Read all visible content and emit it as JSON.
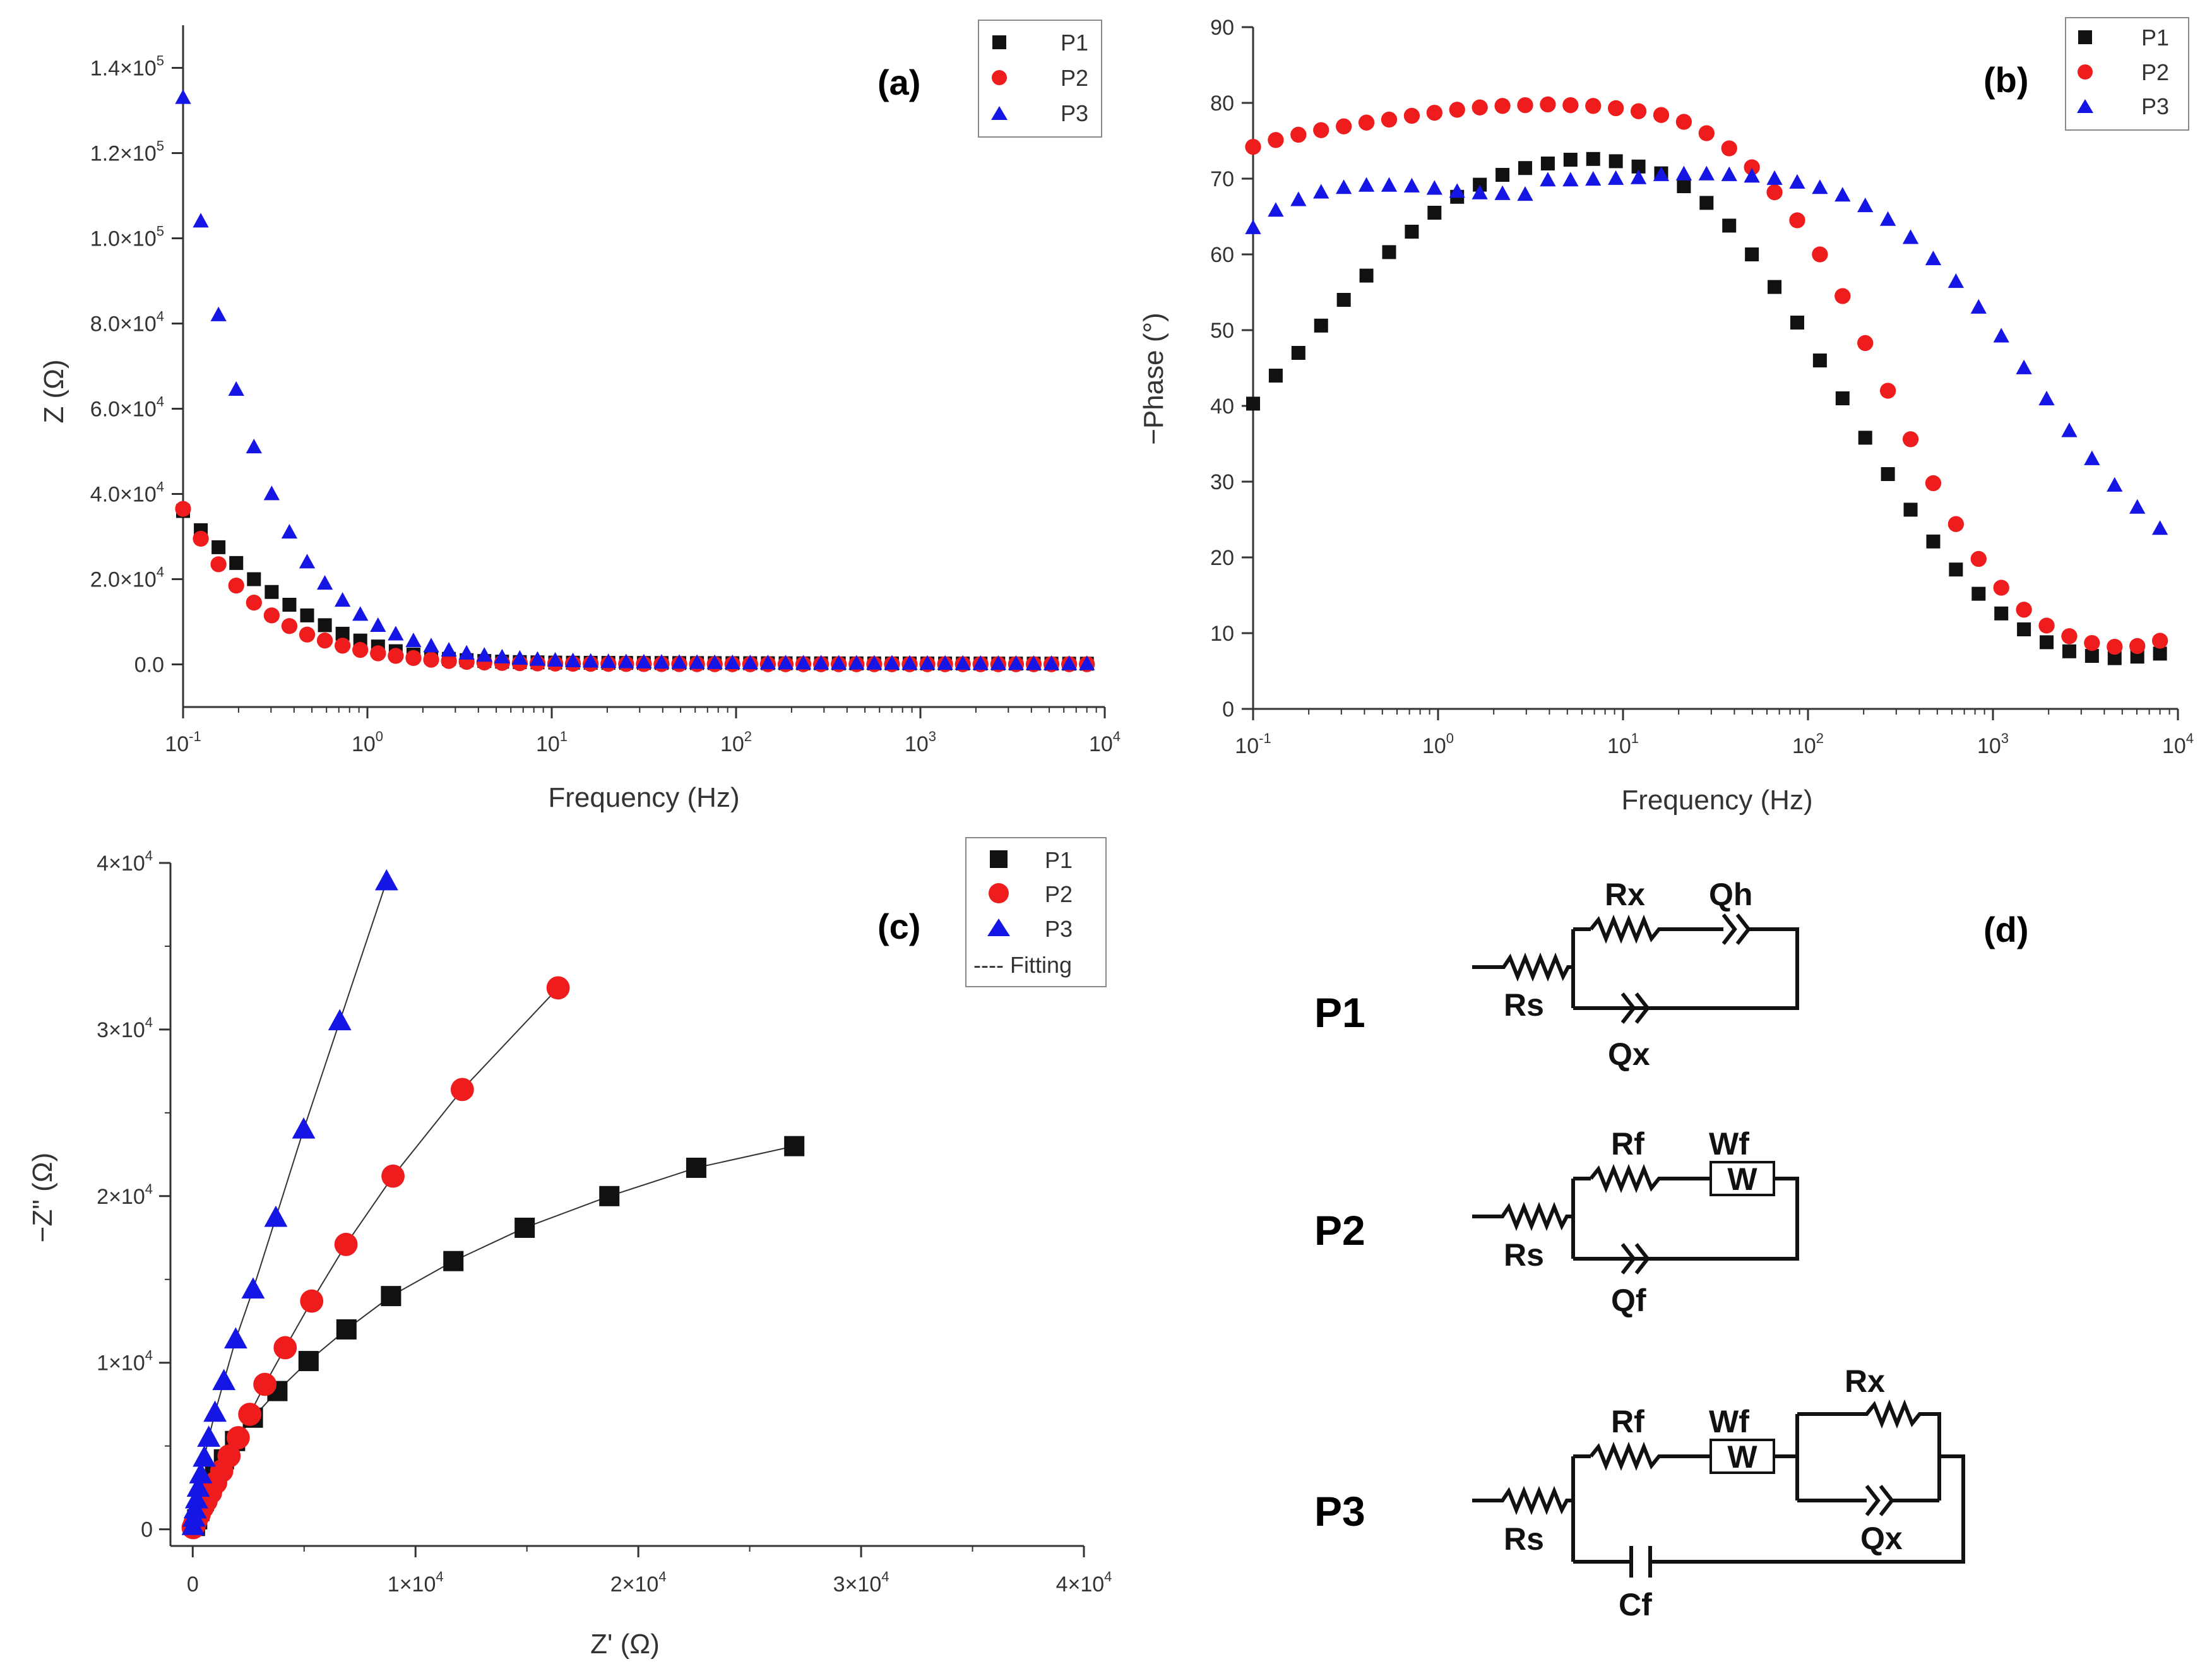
{
  "colors": {
    "P1": "#111111",
    "P2": "#ee1c1c",
    "P3": "#1515e6",
    "axis": "#333333",
    "fit": "#333333"
  },
  "chart_data": [
    {
      "id": "a",
      "type": "scatter",
      "panel_label": "(a)",
      "xscale": "log",
      "xlabel": "Frequency (Hz)",
      "ylabel": "Z (Ω)",
      "xlim": [
        0.1,
        10000
      ],
      "ylim": [
        -10000,
        150000
      ],
      "xticks": [
        {
          "base": "10",
          "exp": "-1"
        },
        {
          "base": "10",
          "exp": "0"
        },
        {
          "base": "10",
          "exp": "1"
        },
        {
          "base": "10",
          "exp": "2"
        },
        {
          "base": "10",
          "exp": "3"
        },
        {
          "base": "10",
          "exp": "4"
        }
      ],
      "yticks": [
        {
          "value": 0,
          "mant": "0.0",
          "exp": ""
        },
        {
          "value": 20000,
          "mant": "2.0×10",
          "exp": "4"
        },
        {
          "value": 40000,
          "mant": "4.0×10",
          "exp": "4"
        },
        {
          "value": 60000,
          "mant": "6.0×10",
          "exp": "4"
        },
        {
          "value": 80000,
          "mant": "8.0×10",
          "exp": "4"
        },
        {
          "value": 100000,
          "mant": "1.0×10",
          "exp": "5"
        },
        {
          "value": 120000,
          "mant": "1.2×10",
          "exp": "5"
        },
        {
          "value": 140000,
          "mant": "1.4×10",
          "exp": "5"
        }
      ],
      "legend": [
        "P1",
        "P2",
        "P3"
      ],
      "legend_position": "top-right",
      "series": [
        {
          "name": "P1",
          "marker": "square",
          "y": [
            36000,
            31500,
            27500,
            23800,
            20000,
            17000,
            14000,
            11500,
            9200,
            7200,
            5600,
            4200,
            3100,
            2300,
            1700,
            1300,
            1000,
            800,
            650,
            550,
            480,
            430,
            400,
            380,
            360,
            350,
            340,
            330,
            320,
            310,
            300,
            290,
            280,
            270,
            260,
            250,
            245,
            240,
            235,
            230,
            225,
            220,
            215,
            210,
            205,
            200,
            195,
            190,
            185,
            180,
            175,
            170
          ]
        },
        {
          "name": "P2",
          "marker": "circle",
          "y": [
            36500,
            29500,
            23500,
            18500,
            14500,
            11500,
            9000,
            7000,
            5600,
            4400,
            3400,
            2600,
            2000,
            1500,
            1100,
            800,
            600,
            450,
            350,
            280,
            230,
            190,
            160,
            140,
            120,
            100,
            90,
            80,
            70,
            60,
            55,
            50,
            45,
            40,
            40,
            40,
            40,
            40,
            40,
            40,
            40,
            40,
            40,
            40,
            40,
            40,
            40,
            40,
            40,
            40,
            40,
            40
          ]
        },
        {
          "name": "P3",
          "marker": "triangle",
          "y": [
            133000,
            104000,
            82000,
            64500,
            51000,
            40000,
            31000,
            24000,
            19000,
            15000,
            11700,
            9100,
            7100,
            5500,
            4300,
            3300,
            2600,
            2100,
            1700,
            1400,
            1150,
            950,
            800,
            700,
            620,
            560,
            510,
            470,
            440,
            410,
            380,
            360,
            340,
            320,
            300,
            290,
            280,
            270,
            260,
            250,
            240,
            230,
            220,
            210,
            200,
            190,
            180,
            170,
            160,
            150,
            140,
            130
          ]
        }
      ]
    },
    {
      "id": "b",
      "type": "scatter",
      "panel_label": "(b)",
      "xscale": "log",
      "xlabel": "Frequency (Hz)",
      "ylabel": "−Phase (°)",
      "xlim": [
        0.1,
        10000
      ],
      "ylim": [
        0,
        90
      ],
      "xticks": [
        {
          "base": "10",
          "exp": "-1"
        },
        {
          "base": "10",
          "exp": "0"
        },
        {
          "base": "10",
          "exp": "1"
        },
        {
          "base": "10",
          "exp": "2"
        },
        {
          "base": "10",
          "exp": "3"
        },
        {
          "base": "10",
          "exp": "4"
        }
      ],
      "yticks": [
        {
          "value": 0,
          "mant": "0",
          "exp": ""
        },
        {
          "value": 10,
          "mant": "10",
          "exp": ""
        },
        {
          "value": 20,
          "mant": "20",
          "exp": ""
        },
        {
          "value": 30,
          "mant": "30",
          "exp": ""
        },
        {
          "value": 40,
          "mant": "40",
          "exp": ""
        },
        {
          "value": 50,
          "mant": "50",
          "exp": ""
        },
        {
          "value": 60,
          "mant": "60",
          "exp": ""
        },
        {
          "value": 70,
          "mant": "70",
          "exp": ""
        },
        {
          "value": 80,
          "mant": "80",
          "exp": ""
        },
        {
          "value": 90,
          "mant": "90",
          "exp": ""
        }
      ],
      "legend": [
        "P1",
        "P2",
        "P3"
      ],
      "legend_position": "top-right",
      "series": [
        {
          "name": "P1",
          "marker": "square",
          "y": [
            40.3,
            44,
            47,
            50.6,
            54,
            57.2,
            60.3,
            63,
            65.5,
            67.6,
            69.2,
            70.5,
            71.4,
            72,
            72.5,
            72.6,
            72.3,
            71.6,
            70.7,
            69,
            66.8,
            63.8,
            60,
            55.7,
            51,
            46,
            41,
            35.8,
            31,
            26.3,
            22.1,
            18.4,
            15.2,
            12.6,
            10.5,
            8.8,
            7.6,
            7,
            6.7,
            6.9,
            7.3
          ]
        },
        {
          "name": "P2",
          "marker": "circle",
          "y": [
            74.2,
            75.1,
            75.8,
            76.4,
            76.9,
            77.4,
            77.8,
            78.3,
            78.7,
            79.1,
            79.4,
            79.6,
            79.7,
            79.8,
            79.7,
            79.6,
            79.3,
            78.9,
            78.4,
            77.5,
            76,
            74,
            71.5,
            68.2,
            64.5,
            60,
            54.5,
            48.3,
            42,
            35.6,
            29.8,
            24.4,
            19.8,
            16,
            13.1,
            11,
            9.6,
            8.7,
            8.2,
            8.3,
            9
          ]
        },
        {
          "name": "P3",
          "marker": "triangle",
          "y": [
            63.5,
            65.8,
            67.2,
            68.2,
            68.8,
            69.1,
            69.1,
            69,
            68.7,
            68.3,
            68.1,
            68,
            67.9,
            69.8,
            69.8,
            69.9,
            70,
            70.1,
            70.5,
            70.6,
            70.6,
            70.5,
            70.3,
            70,
            69.5,
            68.8,
            67.8,
            66.4,
            64.6,
            62.2,
            59.4,
            56.4,
            53,
            49.2,
            45,
            40.9,
            36.7,
            33,
            29.5,
            26.6,
            23.8
          ]
        }
      ]
    },
    {
      "id": "c",
      "type": "scatter",
      "panel_label": "(c)",
      "xscale": "linear",
      "xlabel": "Z' (Ω)",
      "ylabel": "−Z\" (Ω)",
      "xlim": [
        -1000,
        40000
      ],
      "ylim": [
        -1000,
        40000
      ],
      "xticks": [
        {
          "value": 0,
          "mant": "0",
          "exp": ""
        },
        {
          "value": 10000,
          "mant": "1×10",
          "exp": "4"
        },
        {
          "value": 20000,
          "mant": "2×10",
          "exp": "4"
        },
        {
          "value": 30000,
          "mant": "3×10",
          "exp": "4"
        },
        {
          "value": 40000,
          "mant": "4×10",
          "exp": "4"
        }
      ],
      "yticks": [
        {
          "value": 0,
          "mant": "0",
          "exp": ""
        },
        {
          "value": 10000,
          "mant": "1×10",
          "exp": "4"
        },
        {
          "value": 20000,
          "mant": "2×10",
          "exp": "4"
        },
        {
          "value": 30000,
          "mant": "3×10",
          "exp": "4"
        },
        {
          "value": 40000,
          "mant": "4×10",
          "exp": "4"
        }
      ],
      "legend": [
        "P1",
        "P2",
        "P3",
        "---- Fitting"
      ],
      "legend_position": "top-right",
      "series": [
        {
          "name": "P1",
          "marker": "square",
          "x": [
            27000,
            22600,
            18700,
            14900,
            11700,
            8900,
            6900,
            5200,
            3800,
            2700,
            1900,
            1400,
            1000,
            700,
            500,
            300,
            200,
            100
          ],
          "y": [
            23000,
            21700,
            20000,
            18100,
            16100,
            14000,
            12000,
            10100,
            8300,
            6700,
            5300,
            4200,
            3200,
            2400,
            1700,
            1100,
            600,
            200
          ]
        },
        {
          "name": "P2",
          "marker": "circle",
          "x": [
            16400,
            12100,
            8990,
            6880,
            5340,
            4150,
            3240,
            2560,
            2040,
            1630,
            1300,
            1030,
            800,
            600,
            430,
            290,
            170,
            80,
            20
          ],
          "y": [
            32500,
            26400,
            21200,
            17100,
            13700,
            10900,
            8700,
            6900,
            5500,
            4400,
            3500,
            2800,
            2200,
            1700,
            1300,
            900,
            600,
            300,
            100
          ]
        },
        {
          "name": "P3",
          "marker": "triangle",
          "x": [
            8700,
            6600,
            4980,
            3730,
            2710,
            1930,
            1400,
            1000,
            720,
            520,
            360,
            250,
            170,
            110,
            60,
            20
          ],
          "y": [
            38900,
            30500,
            24000,
            18700,
            14400,
            11400,
            8900,
            7000,
            5500,
            4300,
            3300,
            2500,
            1800,
            1200,
            700,
            200
          ]
        }
      ]
    }
  ],
  "circuits": {
    "panel_label": "(d)",
    "P1": {
      "name": "P1",
      "Rs": "Rs",
      "Rx": "Rx",
      "Qh": "Qh",
      "Qx": "Qx"
    },
    "P2": {
      "name": "P2",
      "Rs": "Rs",
      "Rf": "Rf",
      "Wf": "Wf",
      "Wbox": "W",
      "Qf": "Qf"
    },
    "P3": {
      "name": "P3",
      "Rs": "Rs",
      "Rf": "Rf",
      "Wf": "Wf",
      "Wbox": "W",
      "Rx": "Rx",
      "Qx": "Qx",
      "Cf": "Cf"
    }
  }
}
